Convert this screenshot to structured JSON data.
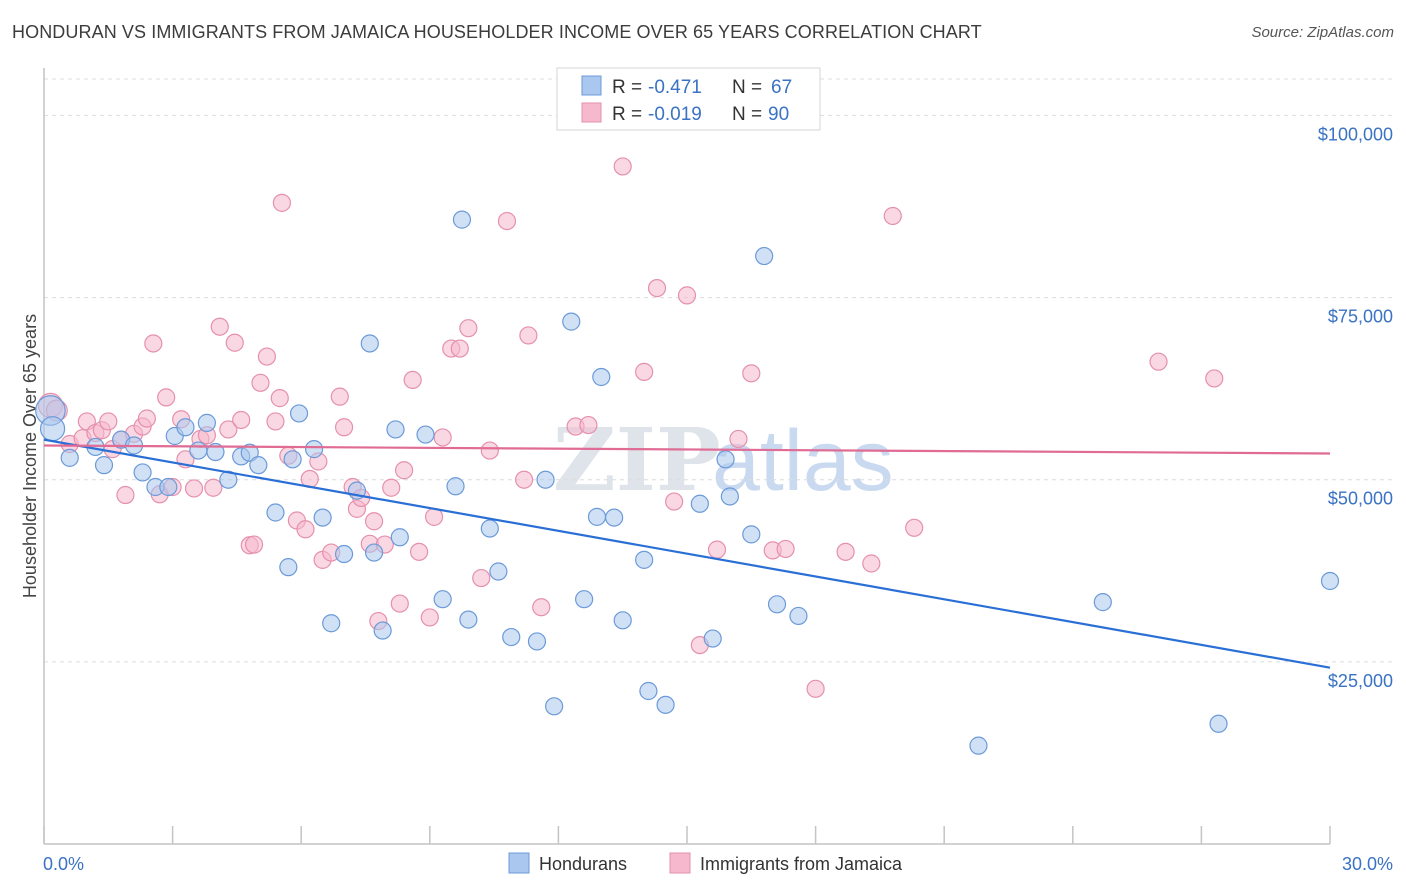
{
  "title": "HONDURAN VS IMMIGRANTS FROM JAMAICA HOUSEHOLDER INCOME OVER 65 YEARS CORRELATION CHART",
  "source": "Source: ZipAtlas.com",
  "watermark": {
    "zip": "ZIP",
    "atlas": "atlas"
  },
  "colors": {
    "blue_fill": "#aac8ef",
    "blue_stroke": "#6c9ad8",
    "blue_line": "#2a6fd6",
    "pink_fill": "#f5b8cc",
    "pink_stroke": "#e590ad",
    "pink_line": "#e06b94",
    "tick_label": "#3a72c4",
    "grid": "#dcdcdc"
  },
  "legend_top": [
    {
      "r_label": "R =",
      "r_value": "-0.471",
      "n_label": "N =",
      "n_value": "67",
      "series": "hondurans"
    },
    {
      "r_label": "R =",
      "r_value": "-0.019",
      "n_label": "N =",
      "n_value": "90",
      "series": "jamaica"
    }
  ],
  "chart_data": {
    "type": "scatter",
    "xlabel": "",
    "ylabel": "Householder Income Over 65 years",
    "xlim": [
      0,
      30
    ],
    "ylim": [
      0,
      105000
    ],
    "x_tick_labels": [
      "0.0%",
      "30.0%"
    ],
    "y_ticks": [
      25000,
      50000,
      75000,
      100000
    ],
    "y_tick_labels": [
      "$25,000",
      "$50,000",
      "$75,000",
      "$100,000"
    ],
    "legend": [
      "Hondurans",
      "Immigrants from Jamaica"
    ],
    "series": [
      {
        "name": "Hondurans",
        "trend": {
          "x": [
            0,
            30
          ],
          "y": [
            55500,
            24200
          ]
        },
        "points": [
          [
            0.15,
            59500,
            3
          ],
          [
            0.2,
            57000,
            2
          ],
          [
            0.6,
            53000,
            1
          ],
          [
            1.2,
            54500,
            1
          ],
          [
            1.4,
            52000,
            1
          ],
          [
            1.8,
            55500,
            1
          ],
          [
            2.1,
            54700,
            1
          ],
          [
            2.3,
            51000,
            1
          ],
          [
            2.6,
            49000,
            1
          ],
          [
            2.9,
            49000,
            1
          ],
          [
            3.05,
            56000,
            1
          ],
          [
            3.3,
            57200,
            1
          ],
          [
            3.6,
            54000,
            1
          ],
          [
            3.8,
            57800,
            1
          ],
          [
            4.0,
            53800,
            1
          ],
          [
            4.3,
            50000,
            1
          ],
          [
            4.6,
            53200,
            1
          ],
          [
            4.8,
            53700,
            1
          ],
          [
            5.0,
            52000,
            1
          ],
          [
            5.4,
            45500,
            1
          ],
          [
            5.7,
            38000,
            1
          ],
          [
            5.8,
            52800,
            1
          ],
          [
            5.95,
            59100,
            1
          ],
          [
            6.3,
            54200,
            1
          ],
          [
            6.5,
            44800,
            1
          ],
          [
            6.7,
            30300,
            1
          ],
          [
            7.0,
            39800,
            1
          ],
          [
            7.3,
            48500,
            1
          ],
          [
            7.6,
            68700,
            1
          ],
          [
            7.7,
            40000,
            1
          ],
          [
            7.9,
            29300,
            1
          ],
          [
            8.3,
            42100,
            1
          ],
          [
            8.2,
            56900,
            1
          ],
          [
            8.9,
            56200,
            1
          ],
          [
            9.3,
            33600,
            1
          ],
          [
            9.6,
            49100,
            1
          ],
          [
            9.75,
            85700,
            1
          ],
          [
            9.9,
            30800,
            1
          ],
          [
            10.4,
            43300,
            1
          ],
          [
            10.6,
            37400,
            1
          ],
          [
            10.9,
            28400,
            1
          ],
          [
            11.5,
            27800,
            1
          ],
          [
            11.7,
            50000,
            1
          ],
          [
            11.9,
            18900,
            1
          ],
          [
            12.3,
            71700,
            1
          ],
          [
            12.6,
            33600,
            1
          ],
          [
            12.9,
            44900,
            1
          ],
          [
            13.0,
            64100,
            1
          ],
          [
            13.3,
            44800,
            1
          ],
          [
            13.5,
            30700,
            1
          ],
          [
            14.0,
            39000,
            1
          ],
          [
            14.1,
            21000,
            1
          ],
          [
            14.5,
            19100,
            1
          ],
          [
            15.3,
            46700,
            1
          ],
          [
            15.6,
            28200,
            1
          ],
          [
            15.9,
            52800,
            1
          ],
          [
            16.0,
            47700,
            1
          ],
          [
            16.5,
            42500,
            1
          ],
          [
            16.8,
            80700,
            1
          ],
          [
            17.1,
            32900,
            1
          ],
          [
            17.6,
            31300,
            1
          ],
          [
            21.8,
            13500,
            1
          ],
          [
            24.7,
            33200,
            1
          ],
          [
            27.4,
            16500,
            1
          ],
          [
            30.0,
            36100,
            1
          ]
        ]
      },
      {
        "name": "Immigrants from Jamaica",
        "trend": {
          "x": [
            0,
            30
          ],
          "y": [
            54700,
            53600
          ]
        },
        "points": [
          [
            0.15,
            60200,
            2
          ],
          [
            0.3,
            59500,
            1.5
          ],
          [
            0.6,
            54900,
            1
          ],
          [
            0.9,
            55700,
            1
          ],
          [
            1.0,
            58000,
            1
          ],
          [
            1.2,
            56400,
            1
          ],
          [
            1.35,
            56800,
            1
          ],
          [
            1.5,
            58000,
            1
          ],
          [
            1.6,
            54200,
            1
          ],
          [
            1.8,
            55500,
            1
          ],
          [
            1.9,
            47900,
            1
          ],
          [
            2.1,
            56300,
            1
          ],
          [
            2.3,
            57300,
            1
          ],
          [
            2.4,
            58400,
            1
          ],
          [
            2.55,
            68700,
            1
          ],
          [
            2.7,
            48000,
            1
          ],
          [
            2.85,
            61300,
            1
          ],
          [
            3.0,
            49000,
            1
          ],
          [
            3.2,
            58300,
            1
          ],
          [
            3.3,
            52800,
            1
          ],
          [
            3.5,
            48800,
            1
          ],
          [
            3.65,
            55600,
            1
          ],
          [
            3.8,
            56100,
            1
          ],
          [
            3.95,
            48900,
            1
          ],
          [
            4.1,
            71000,
            1
          ],
          [
            4.3,
            56900,
            1
          ],
          [
            4.45,
            68800,
            1
          ],
          [
            4.6,
            58200,
            1
          ],
          [
            4.8,
            41000,
            1
          ],
          [
            4.9,
            41100,
            1
          ],
          [
            5.05,
            63300,
            1
          ],
          [
            5.2,
            66900,
            1
          ],
          [
            5.4,
            58000,
            1
          ],
          [
            5.5,
            61200,
            1
          ],
          [
            5.55,
            88000,
            1
          ],
          [
            5.7,
            53300,
            1
          ],
          [
            5.9,
            44400,
            1
          ],
          [
            6.1,
            43200,
            1
          ],
          [
            6.2,
            50100,
            1
          ],
          [
            6.4,
            52500,
            1
          ],
          [
            6.5,
            39000,
            1
          ],
          [
            6.7,
            40000,
            1
          ],
          [
            6.9,
            61400,
            1
          ],
          [
            7.0,
            57200,
            1
          ],
          [
            7.2,
            49000,
            1
          ],
          [
            7.3,
            46000,
            1
          ],
          [
            7.4,
            47500,
            1
          ],
          [
            7.6,
            41200,
            1
          ],
          [
            7.7,
            44300,
            1
          ],
          [
            7.8,
            30600,
            1
          ],
          [
            7.95,
            41100,
            1
          ],
          [
            8.1,
            48900,
            1
          ],
          [
            8.3,
            33000,
            1
          ],
          [
            8.4,
            51300,
            1
          ],
          [
            8.6,
            63700,
            1
          ],
          [
            8.75,
            40100,
            1
          ],
          [
            9.0,
            31100,
            1
          ],
          [
            9.1,
            44900,
            1
          ],
          [
            9.3,
            55800,
            1
          ],
          [
            9.5,
            68000,
            1
          ],
          [
            9.7,
            68000,
            1
          ],
          [
            9.9,
            70800,
            1
          ],
          [
            10.2,
            36500,
            1
          ],
          [
            10.4,
            54000,
            1
          ],
          [
            10.8,
            85500,
            1
          ],
          [
            11.2,
            50000,
            1
          ],
          [
            11.3,
            69800,
            1
          ],
          [
            11.6,
            32500,
            1
          ],
          [
            12.4,
            57300,
            1
          ],
          [
            12.7,
            57500,
            1
          ],
          [
            13.5,
            93000,
            1
          ],
          [
            14.0,
            64800,
            1
          ],
          [
            14.3,
            76300,
            1
          ],
          [
            14.7,
            47000,
            1
          ],
          [
            15.0,
            75300,
            1
          ],
          [
            15.3,
            27300,
            1
          ],
          [
            15.7,
            40400,
            1
          ],
          [
            16.2,
            55600,
            1
          ],
          [
            16.5,
            64600,
            1
          ],
          [
            17.0,
            40300,
            1
          ],
          [
            17.3,
            40500,
            1
          ],
          [
            18.0,
            21300,
            1
          ],
          [
            18.7,
            40100,
            1
          ],
          [
            19.3,
            38500,
            1
          ],
          [
            19.8,
            86200,
            1
          ],
          [
            20.3,
            43400,
            1
          ],
          [
            26.0,
            66200,
            1
          ],
          [
            27.3,
            63900,
            1
          ]
        ]
      }
    ]
  }
}
